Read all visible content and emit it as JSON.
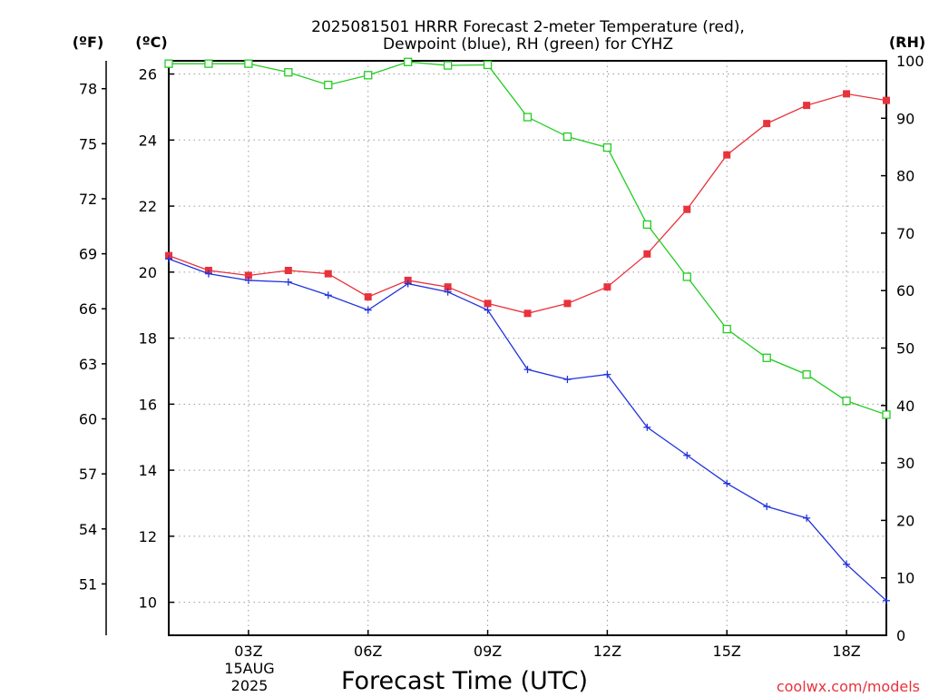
{
  "chart_data": {
    "type": "line",
    "title_line1": "2025081501 HRRR Forecast 2-meter Temperature (red),",
    "title_line2": "Dewpoint (blue), RH (green) for CYHZ",
    "xlabel": "Forecast Time (UTC)",
    "y_left_far_unit": "(ºF)",
    "y_left_unit": "(ºC)",
    "y_right_unit": "(RH)",
    "credit": "coolwx.com/models",
    "date_label_1": "15AUG",
    "date_label_2": "2025",
    "x_hours": [
      1,
      2,
      3,
      4,
      5,
      6,
      7,
      8,
      9,
      10,
      11,
      12,
      13,
      14,
      15,
      16,
      17,
      18,
      19
    ],
    "x_range": [
      1,
      19
    ],
    "x_ticks": [
      {
        "hour": 3,
        "label": "03Z"
      },
      {
        "hour": 6,
        "label": "06Z"
      },
      {
        "hour": 9,
        "label": "09Z"
      },
      {
        "hour": 12,
        "label": "12Z"
      },
      {
        "hour": 15,
        "label": "15Z"
      },
      {
        "hour": 18,
        "label": "18Z"
      }
    ],
    "y_celsius_range": [
      9.0,
      26.4
    ],
    "y_celsius_ticks": [
      10,
      12,
      14,
      16,
      18,
      20,
      22,
      24,
      26
    ],
    "y_fahrenheit_ticks": [
      51,
      54,
      57,
      60,
      63,
      66,
      69,
      72,
      75,
      78
    ],
    "y_rh_range": [
      0,
      100
    ],
    "y_rh_ticks": [
      0,
      10,
      20,
      30,
      40,
      50,
      60,
      70,
      80,
      90,
      100
    ],
    "series": [
      {
        "name": "Temperature",
        "axis": "celsius",
        "color": "#e8323c",
        "marker": "filled-square",
        "values": [
          20.5,
          20.05,
          19.9,
          20.05,
          19.95,
          19.25,
          19.75,
          19.55,
          19.05,
          18.75,
          19.05,
          19.55,
          20.55,
          21.9,
          23.55,
          24.5,
          25.05,
          25.4,
          25.2
        ]
      },
      {
        "name": "Dewpoint",
        "axis": "celsius",
        "color": "#2233dd",
        "marker": "plus",
        "values": [
          20.4,
          19.95,
          19.75,
          19.7,
          19.3,
          18.85,
          19.65,
          19.4,
          18.85,
          17.05,
          16.75,
          16.9,
          15.3,
          14.45,
          13.6,
          12.9,
          12.55,
          11.15,
          10.05
        ]
      },
      {
        "name": "RH",
        "axis": "rh",
        "color": "#22cc22",
        "marker": "open-square",
        "values": [
          99.5,
          99.5,
          99.5,
          98.0,
          95.8,
          97.5,
          99.8,
          99.2,
          99.3,
          90.2,
          86.8,
          84.9,
          71.5,
          62.4,
          53.3,
          48.3,
          45.4,
          40.8,
          38.4
        ]
      }
    ],
    "grid": true
  }
}
